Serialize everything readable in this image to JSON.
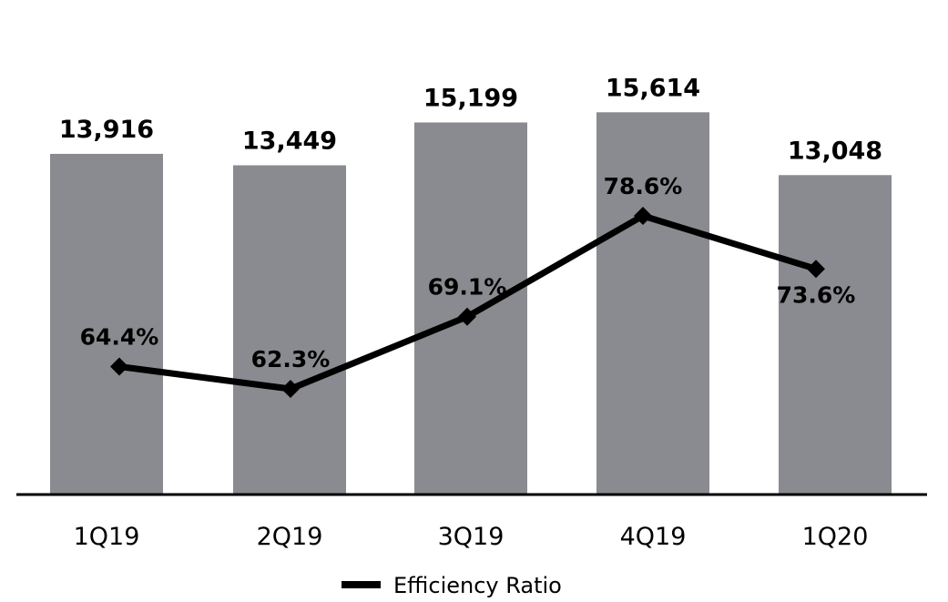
{
  "chart_data": {
    "type": "bar",
    "categories": [
      "1Q19",
      "2Q19",
      "3Q19",
      "4Q19",
      "1Q20"
    ],
    "bar_series": {
      "values": [
        13916,
        13449,
        15199,
        15614,
        13048
      ],
      "labels": [
        "13,916",
        "13,449",
        "15,199",
        "15,614",
        "13,048"
      ],
      "color": "#8a8b90"
    },
    "line_series": {
      "name": "Efficiency Ratio",
      "values": [
        64.4,
        62.3,
        69.1,
        78.6,
        73.6
      ],
      "labels": [
        "64.4%",
        "62.3%",
        "69.1%",
        "78.6%",
        "73.6%"
      ],
      "color": "#000000",
      "marker": "diamond"
    },
    "legend": {
      "position": "bottom-center",
      "entries": [
        "Efficiency Ratio"
      ]
    },
    "grid": false
  }
}
